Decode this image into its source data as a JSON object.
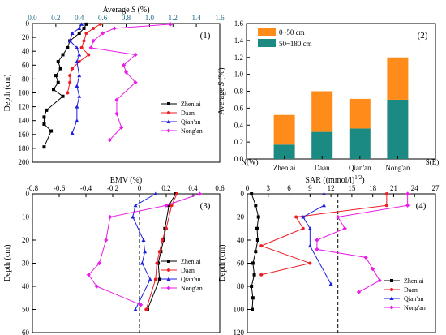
{
  "chart_data": [
    {
      "type": "line",
      "panel_label": "(1)",
      "xlabel": "Average S (%)",
      "ylabel": "Depth (cm)",
      "xlim": [
        0,
        1.6
      ],
      "ylim": [
        200,
        0
      ],
      "xticks": [
        "0.0",
        "0.2",
        "0.4",
        "0.6",
        "0.8",
        "1.0",
        "1.2",
        "1.4",
        "1.6"
      ],
      "yticks": [
        "0",
        "20",
        "40",
        "60",
        "80",
        "100",
        "120",
        "140",
        "160",
        "180",
        "200"
      ],
      "tick_color": "#1a6b8a",
      "legend_position": "lower-right",
      "series": [
        {
          "name": "Zhenlai",
          "color": "#000000",
          "marker": "square",
          "x": [
            0.46,
            0.44,
            0.4,
            0.32,
            0.3,
            0.26,
            0.22,
            0.24,
            0.2,
            0.22,
            0.18,
            0.26,
            0.12,
            0.1,
            0.1,
            0.16,
            0.1
          ],
          "y": [
            1,
            7,
            14,
            25,
            35,
            45,
            55,
            65,
            75,
            85,
            95,
            105,
            125,
            135,
            145,
            155,
            178
          ]
        },
        {
          "name": "Daan",
          "color": "#ee1c25",
          "marker": "circle",
          "x": [
            0.58,
            0.52,
            0.46,
            0.44,
            0.42,
            0.48,
            0.4,
            0.34,
            0.32,
            0.32,
            0.3
          ],
          "y": [
            1,
            7,
            14,
            25,
            35,
            45,
            55,
            65,
            75,
            85,
            100
          ]
        },
        {
          "name": "Qian'an",
          "color": "#1f1fe0",
          "marker": "triangle",
          "x": [
            0.42,
            0.4,
            0.34,
            0.32,
            0.38,
            0.4,
            0.38,
            0.4,
            0.38,
            0.4,
            0.38,
            0.38,
            0.34
          ],
          "y": [
            1,
            7,
            14,
            25,
            35,
            45,
            55,
            75,
            90,
            105,
            120,
            140,
            158
          ]
        },
        {
          "name": "Nong'an",
          "color": "#e91ce8",
          "marker": "diamond",
          "x": [
            1.18,
            0.7,
            0.6,
            0.52,
            0.5,
            0.88,
            0.78,
            0.8,
            0.88,
            0.72,
            0.72,
            0.76,
            0.66
          ],
          "y": [
            1,
            7,
            14,
            25,
            35,
            45,
            60,
            70,
            85,
            110,
            130,
            150,
            168
          ]
        }
      ]
    },
    {
      "type": "bar",
      "stacked": true,
      "panel_label": "(2)",
      "ylabel": "Average S (%)",
      "x_end_labels": [
        "N(W)",
        "S(E)"
      ],
      "ylim": [
        0,
        1.6
      ],
      "yticks": [
        "0.0",
        "0.2",
        "0.4",
        "0.6",
        "0.8",
        "1.0",
        "1.2",
        "1.4",
        "1.6"
      ],
      "categories": [
        "Zhenlai",
        "Daan",
        "Qian'an",
        "Nong'an"
      ],
      "legend_position": "top-left",
      "series": [
        {
          "name": "50~180 cm",
          "color": "#1b8a82",
          "values": [
            0.17,
            0.32,
            0.36,
            0.7
          ]
        },
        {
          "name": "0~50 cm",
          "color": "#ff8c1a",
          "values": [
            0.35,
            0.48,
            0.35,
            0.5
          ]
        }
      ]
    },
    {
      "type": "line",
      "panel_label": "(3)",
      "xlabel": "EMV (%)",
      "ylabel": "Depth (cm)",
      "xlim": [
        -0.8,
        0.6
      ],
      "ylim": [
        60,
        0
      ],
      "xticks": [
        "-0.8",
        "-0.6",
        "-0.4",
        "-0.2",
        "0",
        "0.2",
        "0.4",
        "0.6"
      ],
      "yticks": [
        "0",
        "10",
        "20",
        "30",
        "40",
        "50",
        "60"
      ],
      "reference_line_x": 0,
      "legend_position": "middle-right",
      "series": [
        {
          "name": "Zhenlai",
          "color": "#000000",
          "marker": "square",
          "x": [
            0.27,
            0.22,
            0.19,
            0.18,
            0.16,
            0.14,
            0.15,
            0.06
          ],
          "y": [
            0,
            5,
            15,
            20,
            25,
            30,
            37,
            50
          ]
        },
        {
          "name": "Daan",
          "color": "#ee1c25",
          "marker": "circle",
          "x": [
            0.28,
            0.24,
            0.2,
            0.17,
            0.15,
            0.13,
            0.12,
            0.05
          ],
          "y": [
            0,
            5,
            15,
            20,
            25,
            30,
            37,
            50
          ]
        },
        {
          "name": "Qian'an",
          "color": "#1f1fe0",
          "marker": "triangle",
          "x": [
            0.12,
            -0.03,
            -0.05,
            0.03,
            0.04,
            0.02,
            0.08,
            -0.03
          ],
          "y": [
            0,
            5,
            10,
            20,
            25,
            30,
            37,
            50
          ]
        },
        {
          "name": "Nong'an",
          "color": "#e91ce8",
          "marker": "diamond",
          "x": [
            0.45,
            0.2,
            -0.22,
            -0.25,
            -0.3,
            -0.38,
            -0.32,
            0.01
          ],
          "y": [
            0,
            5,
            10,
            20,
            30,
            35,
            40,
            48
          ]
        }
      ]
    },
    {
      "type": "line",
      "panel_label": "(4)",
      "xlabel": "SAR ((mmol/l)",
      "xlabel_sup": "1/2",
      "xlabel_end": ")",
      "ylabel": "Depth (cm)",
      "xlim": [
        0,
        27
      ],
      "ylim": [
        120,
        0
      ],
      "xticks": [
        "0",
        "3",
        "6",
        "9",
        "12",
        "15",
        "18",
        "21",
        "24",
        "27"
      ],
      "yticks": [
        "0",
        "20",
        "40",
        "60",
        "80",
        "100",
        "120"
      ],
      "reference_line_x": 13,
      "legend_position": "lower-right",
      "series": [
        {
          "name": "Zhenlai",
          "color": "#000000",
          "marker": "square",
          "x": [
            0.6,
            1.2,
            1.6,
            1.4,
            1.5,
            1.2,
            0.8,
            1.0,
            0.6,
            0.8,
            0.7
          ],
          "y": [
            0,
            10,
            20,
            30,
            40,
            50,
            60,
            70,
            80,
            90,
            100
          ]
        },
        {
          "name": "Daan",
          "color": "#ee1c25",
          "marker": "circle",
          "x": [
            20,
            20,
            7,
            8,
            2,
            9,
            2
          ],
          "y": [
            0,
            10,
            20,
            30,
            45,
            60,
            70
          ]
        },
        {
          "name": "Qian'an",
          "color": "#1f1fe0",
          "marker": "triangle",
          "x": [
            11,
            11,
            8,
            9,
            9,
            12
          ],
          "y": [
            0,
            10,
            20,
            30,
            45,
            78
          ]
        },
        {
          "name": "Nong'an",
          "color": "#e91ce8",
          "marker": "diamond",
          "x": [
            23,
            23,
            13,
            14,
            10,
            10,
            17,
            18,
            19,
            16
          ],
          "y": [
            0,
            10,
            20,
            30,
            40,
            48,
            55,
            65,
            75,
            85
          ]
        }
      ]
    }
  ]
}
